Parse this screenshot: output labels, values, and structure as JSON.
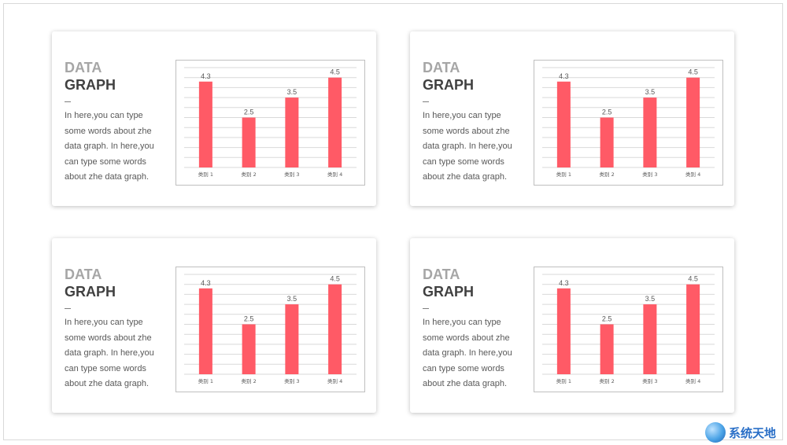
{
  "cards": [
    {
      "title_line1": "DATA",
      "title_line2": "GRAPH",
      "dash": "—",
      "description": "In here,you can type some words about zhe data graph. In here,you can type some words about zhe data graph."
    },
    {
      "title_line1": "DATA",
      "title_line2": "GRAPH",
      "dash": "—",
      "description": "In here,you can type some words about zhe data graph. In here,you can type some words about zhe data graph."
    },
    {
      "title_line1": "DATA",
      "title_line2": "GRAPH",
      "dash": "—",
      "description": "In here,you can type some words about zhe data graph. In here,you can type some words about zhe data graph."
    },
    {
      "title_line1": "DATA",
      "title_line2": "GRAPH",
      "dash": "—",
      "description": "In here,you can type some words about zhe data graph. In here,you can type some words about zhe data graph."
    }
  ],
  "chart_data": [
    {
      "type": "bar",
      "categories": [
        "类别 1",
        "类别 2",
        "类别 3",
        "类别 4"
      ],
      "values": [
        4.3,
        2.5,
        3.5,
        4.5
      ],
      "data_labels": [
        "4.3",
        "2.5",
        "3.5",
        "4.5"
      ],
      "ylim": [
        0,
        5
      ],
      "grid": true,
      "bar_color": "#ff5a66",
      "title": "",
      "xlabel": "",
      "ylabel": ""
    },
    {
      "type": "bar",
      "categories": [
        "类别 1",
        "类别 2",
        "类别 3",
        "类别 4"
      ],
      "values": [
        4.3,
        2.5,
        3.5,
        4.5
      ],
      "data_labels": [
        "4.3",
        "2.5",
        "3.5",
        "4.5"
      ],
      "ylim": [
        0,
        5
      ],
      "grid": true,
      "bar_color": "#ff5a66",
      "title": "",
      "xlabel": "",
      "ylabel": ""
    },
    {
      "type": "bar",
      "categories": [
        "类别 1",
        "类别 2",
        "类别 3",
        "类别 4"
      ],
      "values": [
        4.3,
        2.5,
        3.5,
        4.5
      ],
      "data_labels": [
        "4.3",
        "2.5",
        "3.5",
        "4.5"
      ],
      "ylim": [
        0,
        5
      ],
      "grid": true,
      "bar_color": "#ff5a66",
      "title": "",
      "xlabel": "",
      "ylabel": ""
    },
    {
      "type": "bar",
      "categories": [
        "类别 1",
        "类别 2",
        "类别 3",
        "类别 4"
      ],
      "values": [
        4.3,
        2.5,
        3.5,
        4.5
      ],
      "data_labels": [
        "4.3",
        "2.5",
        "3.5",
        "4.5"
      ],
      "ylim": [
        0,
        5
      ],
      "grid": true,
      "bar_color": "#ff5a66",
      "title": "",
      "xlabel": "",
      "ylabel": ""
    }
  ],
  "watermark": {
    "text": "系统天地",
    "icon": "globe-logo-icon"
  },
  "colors": {
    "bar": "#ff5a66",
    "title_light": "#a6a6a6",
    "title_dark": "#404040",
    "body_text": "#595959",
    "grid": "#d9d9d9"
  }
}
